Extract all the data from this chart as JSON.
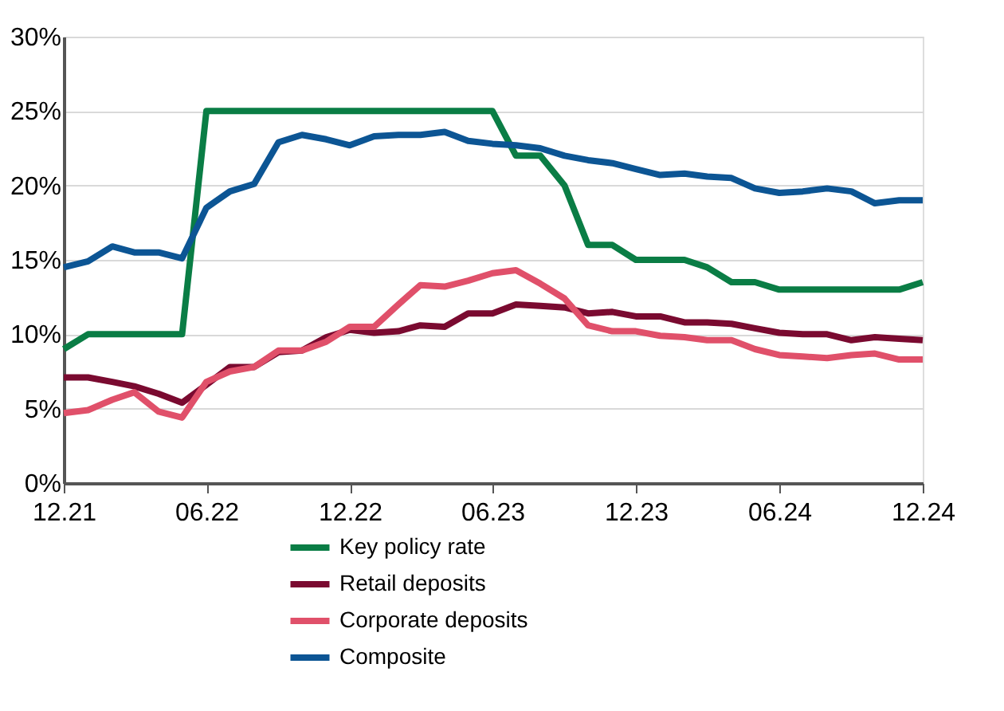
{
  "chart_data": {
    "type": "line",
    "x": [
      "2021-12",
      "2022-01",
      "2022-02",
      "2022-03",
      "2022-04",
      "2022-05",
      "2022-06",
      "2022-07",
      "2022-08",
      "2022-09",
      "2022-10",
      "2022-11",
      "2022-12",
      "2023-01",
      "2023-02",
      "2023-03",
      "2023-04",
      "2023-05",
      "2023-06",
      "2023-07",
      "2023-08",
      "2023-09",
      "2023-10",
      "2023-11",
      "2023-12",
      "2024-01",
      "2024-02",
      "2024-03",
      "2024-04",
      "2024-05",
      "2024-06",
      "2024-07",
      "2024-08",
      "2024-09",
      "2024-10",
      "2024-11",
      "2024-12"
    ],
    "series": [
      {
        "name": "Key policy rate",
        "color": "#0a7d45",
        "values": [
          9,
          10,
          10,
          10,
          10,
          10,
          25,
          25,
          25,
          25,
          25,
          25,
          25,
          25,
          25,
          25,
          25,
          25,
          25,
          22,
          22,
          20,
          16,
          16,
          15,
          15,
          15,
          14.5,
          13.5,
          13.5,
          13,
          13,
          13,
          13,
          13,
          13,
          13.5
        ]
      },
      {
        "name": "Retail deposits",
        "color": "#7a0a30",
        "values": [
          7.1,
          7.1,
          6.8,
          6.5,
          6.0,
          5.4,
          6.6,
          7.8,
          7.8,
          8.8,
          8.9,
          9.8,
          10.3,
          10.1,
          10.2,
          10.6,
          10.5,
          11.4,
          11.4,
          12.0,
          11.9,
          11.8,
          11.4,
          11.5,
          11.2,
          11.2,
          10.8,
          10.8,
          10.7,
          10.4,
          10.1,
          10.0,
          10.0,
          9.6,
          9.8,
          9.7,
          9.6
        ]
      },
      {
        "name": "Corporate deposits",
        "color": "#e0506a",
        "values": [
          4.7,
          4.9,
          5.6,
          6.1,
          4.8,
          4.4,
          6.8,
          7.5,
          7.8,
          8.9,
          8.9,
          9.5,
          10.5,
          10.5,
          12.0,
          13.3,
          13.2,
          13.6,
          14.1,
          14.3,
          13.4,
          12.4,
          10.6,
          10.2,
          10.2,
          9.9,
          9.8,
          9.6,
          9.6,
          9.0,
          8.6,
          8.5,
          8.4,
          8.6,
          8.7,
          8.3,
          8.3
        ]
      },
      {
        "name": "Composite",
        "color": "#0c5594",
        "values": [
          14.5,
          14.9,
          15.9,
          15.5,
          15.5,
          15.1,
          18.5,
          19.6,
          20.1,
          22.9,
          23.4,
          23.1,
          22.7,
          23.3,
          23.4,
          23.4,
          23.6,
          23.0,
          22.8,
          22.7,
          22.5,
          22.0,
          21.7,
          21.5,
          21.1,
          20.7,
          20.8,
          20.6,
          20.5,
          19.8,
          19.5,
          19.6,
          19.8,
          19.6,
          18.8,
          19.0,
          19.0
        ]
      }
    ],
    "xlim": [
      "2021-12",
      "2024-12"
    ],
    "xticks": [
      {
        "value": "2021-12",
        "label": "12.21"
      },
      {
        "value": "2022-06",
        "label": "06.22"
      },
      {
        "value": "2022-12",
        "label": "12.22"
      },
      {
        "value": "2023-06",
        "label": "06.23"
      },
      {
        "value": "2023-12",
        "label": "12.23"
      },
      {
        "value": "2024-06",
        "label": "06.24"
      },
      {
        "value": "2024-12",
        "label": "12.24"
      }
    ],
    "ylim": [
      0,
      30
    ],
    "yticks": [
      {
        "value": 0,
        "label": "0%"
      },
      {
        "value": 5,
        "label": "5%"
      },
      {
        "value": 10,
        "label": "10%"
      },
      {
        "value": 15,
        "label": "15%"
      },
      {
        "value": 20,
        "label": "20%"
      },
      {
        "value": 25,
        "label": "25%"
      },
      {
        "value": 30,
        "label": "30%"
      }
    ],
    "grid": "y",
    "legend": "bottom",
    "marker": "none",
    "line_style": "solid"
  }
}
